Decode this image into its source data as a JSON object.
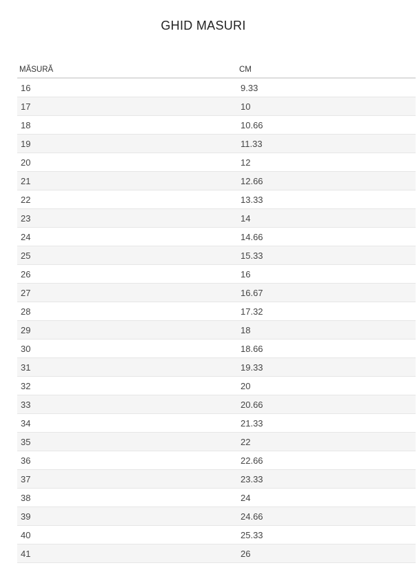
{
  "title": "GHID MASURI",
  "table": {
    "headers": [
      "MĂSURĂ",
      "CM"
    ],
    "rows": [
      [
        "16",
        "9.33"
      ],
      [
        "17",
        "10"
      ],
      [
        "18",
        "10.66"
      ],
      [
        "19",
        "11.33"
      ],
      [
        "20",
        "12"
      ],
      [
        "21",
        "12.66"
      ],
      [
        "22",
        "13.33"
      ],
      [
        "23",
        "14"
      ],
      [
        "24",
        "14.66"
      ],
      [
        "25",
        "15.33"
      ],
      [
        "26",
        "16"
      ],
      [
        "27",
        "16.67"
      ],
      [
        "28",
        "17.32"
      ],
      [
        "29",
        "18"
      ],
      [
        "30",
        "18.66"
      ],
      [
        "31",
        "19.33"
      ],
      [
        "32",
        "20"
      ],
      [
        "33",
        "20.66"
      ],
      [
        "34",
        "21.33"
      ],
      [
        "35",
        "22"
      ],
      [
        "36",
        "22.66"
      ],
      [
        "37",
        "23.33"
      ],
      [
        "38",
        "24"
      ],
      [
        "39",
        "24.66"
      ],
      [
        "40",
        "25.33"
      ],
      [
        "41",
        "26"
      ]
    ]
  },
  "colors": {
    "row_alt": "#f5f5f5",
    "border": "#dddddd"
  }
}
